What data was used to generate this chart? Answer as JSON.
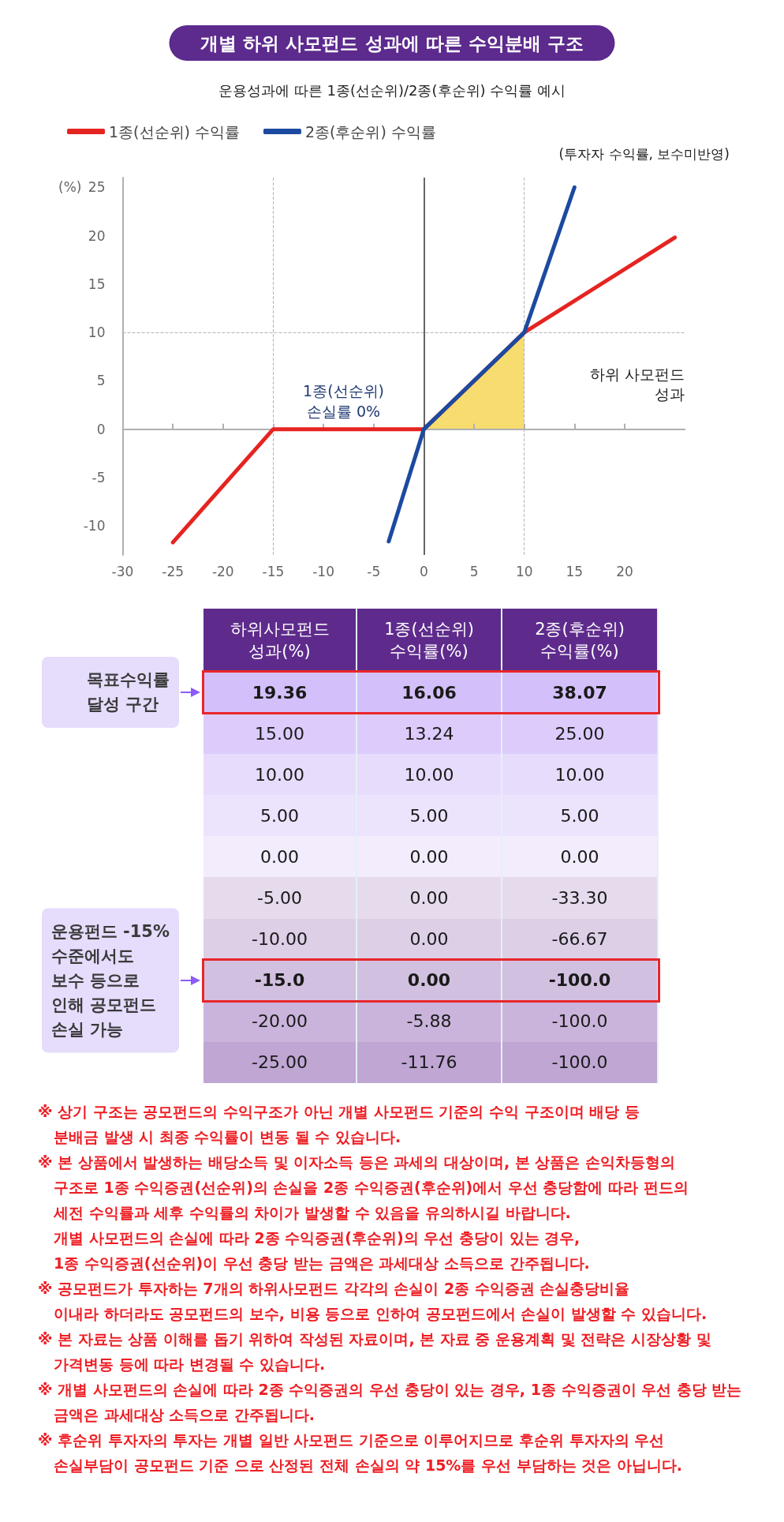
{
  "chart_data": [
    {
      "type": "line",
      "title": "개별 하위 사모펀드 성과에 따른 수익분배 구조",
      "subtitle": "운용성과에 따른 1종(선순위)/2종(후순위) 수익률 예시",
      "xlabel": "하위 사모펀드\n성과",
      "ylabel": "(%)",
      "xlim": [
        -30,
        26
      ],
      "ylim": [
        -13,
        26
      ],
      "xticks": [
        -30,
        -25,
        -20,
        -15,
        -10,
        -5,
        0,
        5,
        10,
        15,
        20
      ],
      "yticks": [
        -10,
        -5,
        0,
        5,
        10,
        15,
        20,
        25
      ],
      "legend": "top left",
      "series": [
        {
          "type": "area",
          "color": "#f7dc6f",
          "x": [
            0,
            10
          ],
          "values": [
            0,
            10
          ]
        },
        {
          "name": "1종(선순위) 수익률",
          "color": "#e52421",
          "x": [
            -25,
            -15,
            0,
            10,
            25
          ],
          "values": [
            -11.7,
            0,
            0,
            10,
            19.8
          ]
        },
        {
          "name": "2종(후순위) 수익률",
          "color": "#1c4aa0",
          "x": [
            -3.5,
            0,
            10,
            15
          ],
          "values": [
            -11.6,
            0,
            10,
            25
          ]
        }
      ],
      "ref_lines": [
        {
          "axis": "x",
          "value": -15,
          "color": "#b5b5b5",
          "line_style": "dashed"
        },
        {
          "axis": "x",
          "value": 10,
          "color": "#b5b5b5",
          "line_style": "dashed"
        },
        {
          "axis": "y",
          "value": 10,
          "color": "#b5b5b5",
          "line_style": "dashed"
        },
        {
          "axis": "x",
          "value": 0,
          "color": "#333333",
          "line_style": "solid"
        }
      ],
      "annotations": [
        {
          "text": "1종(선순위)\n손실률 0%",
          "x": -8,
          "y": 0
        },
        "(투자자 수익률, 보수미반영)"
      ]
    },
    {
      "type": "heatmap",
      "ylabel": "하위사모펀드\n성과(%)",
      "categories": [
        "1종(선순위)\n수익률(%)",
        "2종(후순위)\n수익률(%)"
      ],
      "y_categories": [
        "19.36",
        "15.00",
        "10.00",
        "5.00",
        "0.00",
        "-5.00",
        "-10.00",
        "-15.0",
        "-20.00",
        "-25.00"
      ],
      "cells": [
        [
          16.06,
          38.07
        ],
        [
          13.24,
          25
        ],
        [
          10,
          10
        ],
        [
          5,
          5
        ],
        [
          0,
          0
        ],
        [
          0,
          -33.3
        ],
        [
          0,
          -66.67
        ],
        [
          0,
          -100
        ],
        [
          -5.88,
          -100
        ],
        [
          -11.76,
          -100
        ]
      ],
      "cell_labels": [
        [
          "16.06",
          "38.07"
        ],
        [
          "13.24",
          "25.00"
        ],
        [
          "10.00",
          "10.00"
        ],
        [
          "5.00",
          "5.00"
        ],
        [
          "0.00",
          "0.00"
        ],
        [
          "0.00",
          "-33.30"
        ],
        [
          "0.00",
          "-66.67"
        ],
        [
          "0.00",
          "-100.0"
        ],
        [
          "-5.88",
          "-100.0"
        ],
        [
          "-11.76",
          "-100.0"
        ]
      ],
      "colors": [
        "#d3c0fb",
        "#dccbfb",
        "#e8dcfd",
        "#ece3fd",
        "#f2ecfd",
        "#e6dbec",
        "#dccfe6",
        "#d1c0df",
        "#cab4db",
        "#bfa6d3"
      ],
      "bands": [
        {
          "axis": "y",
          "from": "19.36",
          "to": "19.36",
          "label": "목표수익률\n달성 구간"
        },
        {
          "axis": "y",
          "from": "-15.0",
          "to": "-15.0",
          "label": "운용펀드 -15%\n수준에서도\n보수 등으로\n인해 공모펀드\n손실 가능"
        }
      ],
      "annotations": [
        "※ 상기 구조는 공모펀드의 수익구조가 아닌 개별 사모펀드 기준의 수익 구조이며 배당 등\n분배금 발생 시 최종 수익률이 변동 될 수 있습니다.",
        "※ 본 상품에서 발생하는 배당소득 및 이자소득 등은 과세의 대상이며, 본 상품은 손익차등형의\n구조로 1종 수익증권(선순위)의 손실을 2종 수익증권(후순위)에서 우선 충당함에 따라 펀드의\n세전 수익률과 세후 수익률의 차이가 발생할 수 있음을 유의하시길 바랍니다.\n개별 사모펀드의 손실에 따라 2종 수익증권(후순위)의 우선 충당이 있는 경우,\n1종 수익증권(선순위)이 우선 충당 받는 금액은 과세대상 소득으로 간주됩니다.",
        "※ 공모펀드가 투자하는 7개의 하위사모펀드 각각의 손실이 2종 수익증권 손실충당비율\n이내라 하더라도 공모펀드의 보수, 비용 등으로 인하여 공모펀드에서 손실이 발생할 수 있습니다.",
        "※ 본 자료는 상품 이해를 돕기 위하여 작성된 자료이며, 본 자료 중 운용계획 및 전략은 시장상황 및\n가격변동 등에 따라 변경될 수 있습니다.",
        "※ 개별 사모펀드의 손실에 따라 2종 수익증권의 우선 충당이 있는 경우, 1종 수익증권이 우선 충당 받는\n금액은 과세대상 소득으로 간주됩니다.",
        "※ 후순위 투자자의 투자는 개별 일반 사모펀드 기준으로 이루어지므로 후순위 투자자의 우선\n손실부담이 공모펀드 기준 으로 산정된 전체 손실의 약 15%를 우선 부담하는 것은 아닙니다."
      ]
    }
  ]
}
